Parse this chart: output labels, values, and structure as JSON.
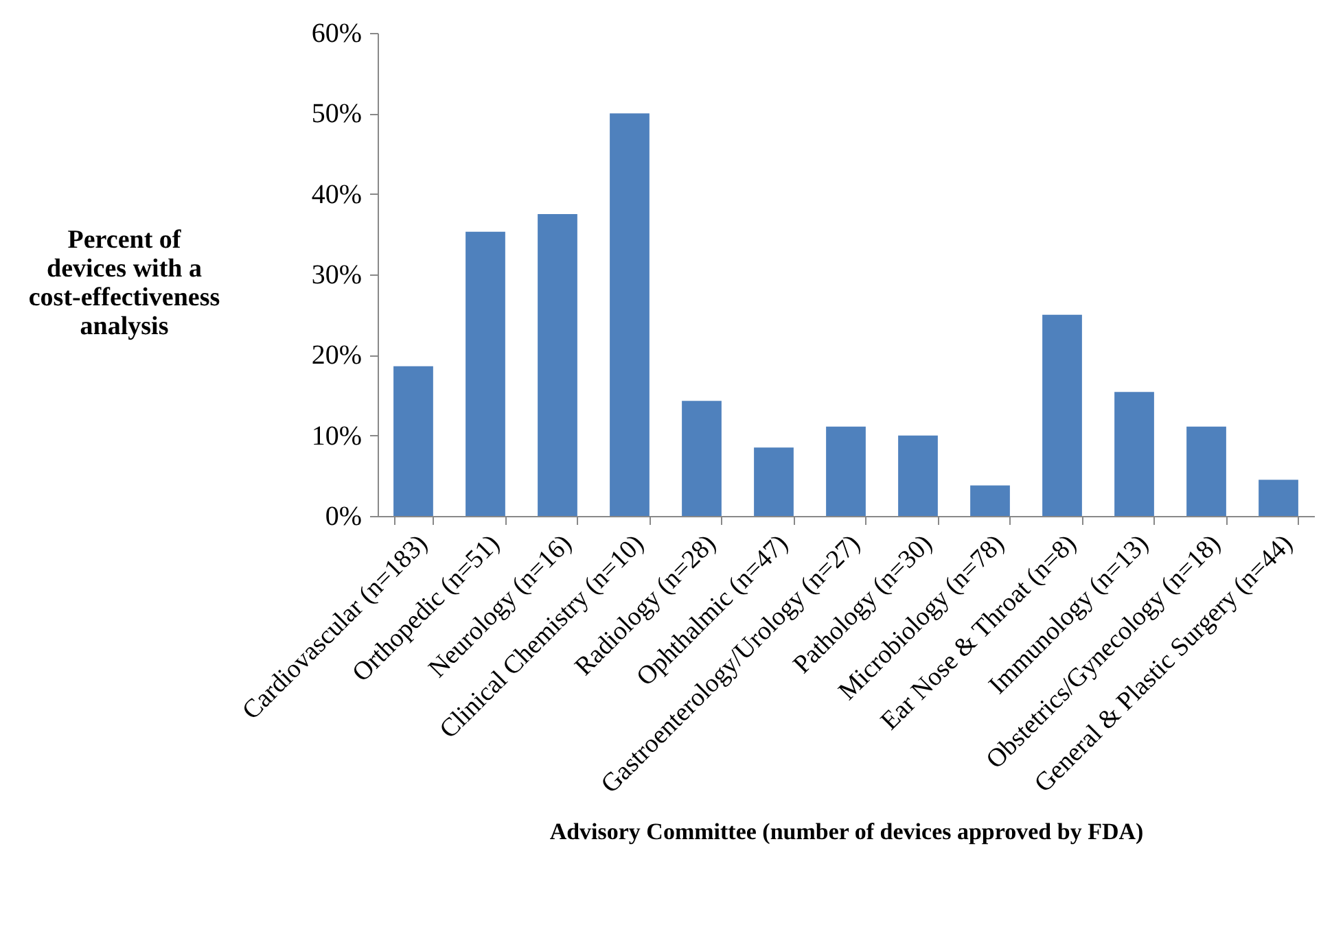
{
  "chart_data": {
    "type": "bar",
    "categories": [
      "Cardiovascular (n=183)",
      "Orthopedic (n=51)",
      "Neurology (n=16)",
      "Clinical Chemistry (n=10)",
      "Radiology (n=28)",
      "Ophthalmic (n=47)",
      "Gastroenterology/Urology (n=27)",
      "Pathology (n=30)",
      "Microbiology (n=78)",
      "Ear Nose & Throat (n=8)",
      "Immunology (n=13)",
      "Obstetrics/Gynecology (n=18)",
      "General & Plastic Surgery (n=44)"
    ],
    "values": [
      18.6,
      35.3,
      37.5,
      50.0,
      14.3,
      8.5,
      11.1,
      10.0,
      3.8,
      25.0,
      15.4,
      11.1,
      4.5
    ],
    "color": "#4f81bd",
    "xlabel": "Advisory Committee (number of devices approved by FDA)",
    "ylabel": "Percent of\ndevices with a\ncost-effectiveness\nanalysis",
    "ylim": [
      0,
      60
    ],
    "yticks": [
      {
        "value": 0,
        "label": "0%"
      },
      {
        "value": 10,
        "label": "10%"
      },
      {
        "value": 20,
        "label": "20%"
      },
      {
        "value": 30,
        "label": "30%"
      },
      {
        "value": 40,
        "label": "40%"
      },
      {
        "value": 50,
        "label": "50%"
      },
      {
        "value": 60,
        "label": "60%"
      }
    ],
    "grid": false
  }
}
